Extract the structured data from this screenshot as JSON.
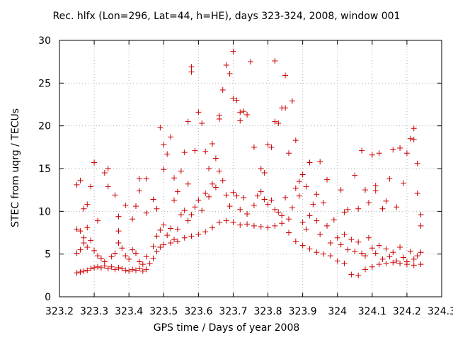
{
  "chart_data": {
    "type": "scatter",
    "title": "Rec. hlfx (Lon=296, Lat=44, h=HE), days 323-324, 2008, window 001",
    "xlabel": "GPS time / Days of year 2008",
    "ylabel": "STEC from uqrg / TECUs",
    "xlim": [
      323.2,
      324.3
    ],
    "ylim": [
      0,
      30
    ],
    "xticks": [
      "323.2",
      "323.3",
      "323.4",
      "323.5",
      "323.6",
      "323.7",
      "323.8",
      "323.9",
      "324",
      "324.1",
      "324.2",
      "324.3"
    ],
    "yticks": [
      "0",
      "5",
      "10",
      "15",
      "20",
      "25",
      "30"
    ],
    "grid": true,
    "marker": "+",
    "marker_color": "#cc0000",
    "points": [
      [
        323.25,
        2.8
      ],
      [
        323.26,
        2.9
      ],
      [
        323.27,
        3.0
      ],
      [
        323.28,
        3.1
      ],
      [
        323.29,
        3.3
      ],
      [
        323.3,
        3.4
      ],
      [
        323.31,
        3.5
      ],
      [
        323.32,
        3.4
      ],
      [
        323.33,
        3.6
      ],
      [
        323.34,
        3.3
      ],
      [
        323.35,
        3.5
      ],
      [
        323.36,
        3.2
      ],
      [
        323.37,
        3.4
      ],
      [
        323.38,
        3.3
      ],
      [
        323.39,
        3.1
      ],
      [
        323.4,
        3.0
      ],
      [
        323.41,
        3.2
      ],
      [
        323.42,
        3.1
      ],
      [
        323.43,
        3.3
      ],
      [
        323.44,
        3.0
      ],
      [
        323.45,
        3.2
      ],
      [
        323.46,
        3.9
      ],
      [
        323.47,
        4.5
      ],
      [
        323.48,
        5.3
      ],
      [
        323.49,
        5.8
      ],
      [
        323.5,
        6.1
      ],
      [
        323.52,
        6.3
      ],
      [
        323.54,
        6.5
      ],
      [
        323.56,
        6.9
      ],
      [
        323.58,
        7.1
      ],
      [
        323.6,
        7.3
      ],
      [
        323.62,
        7.6
      ],
      [
        323.64,
        8.1
      ],
      [
        323.66,
        8.7
      ],
      [
        323.68,
        8.9
      ],
      [
        323.7,
        8.7
      ],
      [
        323.72,
        8.4
      ],
      [
        323.74,
        8.5
      ],
      [
        323.76,
        8.3
      ],
      [
        323.78,
        8.2
      ],
      [
        323.8,
        8.1
      ],
      [
        323.82,
        8.3
      ],
      [
        323.84,
        8.6
      ],
      [
        323.86,
        7.5
      ],
      [
        323.88,
        6.5
      ],
      [
        323.9,
        6.0
      ],
      [
        323.92,
        5.6
      ],
      [
        323.94,
        5.2
      ],
      [
        323.96,
        5.0
      ],
      [
        323.98,
        4.8
      ],
      [
        324.0,
        4.2
      ],
      [
        324.02,
        3.9
      ],
      [
        324.04,
        2.6
      ],
      [
        324.06,
        2.5
      ],
      [
        324.08,
        3.2
      ],
      [
        324.1,
        3.5
      ],
      [
        324.12,
        3.8
      ],
      [
        324.14,
        3.9
      ],
      [
        324.16,
        4.0
      ],
      [
        324.18,
        3.9
      ],
      [
        324.2,
        3.8
      ],
      [
        324.22,
        3.7
      ],
      [
        324.24,
        3.8
      ],
      [
        323.25,
        13.1
      ],
      [
        323.26,
        13.6
      ],
      [
        323.25,
        7.9
      ],
      [
        323.26,
        7.7
      ],
      [
        323.27,
        10.3
      ],
      [
        323.28,
        10.8
      ],
      [
        323.27,
        6.9
      ],
      [
        323.28,
        8.1
      ],
      [
        323.29,
        12.9
      ],
      [
        323.3,
        15.7
      ],
      [
        323.31,
        8.9
      ],
      [
        323.33,
        14.5
      ],
      [
        323.34,
        15.0
      ],
      [
        323.34,
        12.9
      ],
      [
        323.36,
        11.9
      ],
      [
        323.37,
        9.4
      ],
      [
        323.37,
        7.7
      ],
      [
        323.39,
        10.7
      ],
      [
        323.41,
        9.1
      ],
      [
        323.42,
        10.6
      ],
      [
        323.43,
        12.4
      ],
      [
        323.43,
        13.8
      ],
      [
        323.45,
        13.8
      ],
      [
        323.45,
        9.8
      ],
      [
        323.47,
        11.4
      ],
      [
        323.48,
        10.3
      ],
      [
        323.49,
        19.8
      ],
      [
        323.5,
        17.8
      ],
      [
        323.5,
        14.9
      ],
      [
        323.51,
        16.7
      ],
      [
        323.52,
        18.7
      ],
      [
        323.53,
        13.9
      ],
      [
        323.53,
        11.3
      ],
      [
        323.54,
        12.3
      ],
      [
        323.55,
        14.7
      ],
      [
        323.56,
        16.9
      ],
      [
        323.57,
        13.2
      ],
      [
        323.57,
        20.5
      ],
      [
        323.58,
        26.9
      ],
      [
        323.58,
        26.3
      ],
      [
        323.59,
        17.1
      ],
      [
        323.6,
        21.6
      ],
      [
        323.61,
        20.3
      ],
      [
        323.62,
        17.0
      ],
      [
        323.63,
        15.0
      ],
      [
        323.64,
        17.9
      ],
      [
        323.65,
        16.2
      ],
      [
        323.66,
        21.2
      ],
      [
        323.66,
        20.8
      ],
      [
        323.67,
        24.2
      ],
      [
        323.68,
        27.1
      ],
      [
        323.69,
        26.1
      ],
      [
        323.7,
        28.7
      ],
      [
        323.7,
        23.2
      ],
      [
        323.71,
        23.0
      ],
      [
        323.72,
        20.6
      ],
      [
        323.72,
        21.6
      ],
      [
        323.73,
        21.7
      ],
      [
        323.74,
        21.3
      ],
      [
        323.75,
        27.5
      ],
      [
        323.76,
        17.5
      ],
      [
        323.78,
        15.0
      ],
      [
        323.79,
        14.5
      ],
      [
        323.8,
        17.8
      ],
      [
        323.81,
        17.5
      ],
      [
        323.82,
        27.6
      ],
      [
        323.82,
        20.5
      ],
      [
        323.83,
        20.3
      ],
      [
        323.84,
        22.1
      ],
      [
        323.85,
        22.1
      ],
      [
        323.85,
        25.9
      ],
      [
        323.86,
        16.8
      ],
      [
        323.87,
        22.9
      ],
      [
        323.88,
        18.3
      ],
      [
        323.89,
        13.5
      ],
      [
        323.9,
        14.3
      ],
      [
        323.91,
        12.9
      ],
      [
        323.92,
        15.7
      ],
      [
        323.94,
        12.0
      ],
      [
        323.95,
        15.8
      ],
      [
        323.97,
        13.7
      ],
      [
        323.99,
        9.0
      ],
      [
        324.01,
        12.5
      ],
      [
        324.02,
        9.9
      ],
      [
        324.03,
        10.2
      ],
      [
        324.05,
        14.2
      ],
      [
        324.06,
        10.3
      ],
      [
        324.07,
        17.1
      ],
      [
        324.08,
        12.5
      ],
      [
        324.09,
        11.0
      ],
      [
        324.1,
        16.6
      ],
      [
        324.11,
        13.0
      ],
      [
        324.11,
        12.4
      ],
      [
        324.12,
        16.8
      ],
      [
        324.13,
        10.3
      ],
      [
        324.14,
        11.2
      ],
      [
        324.15,
        13.8
      ],
      [
        324.16,
        17.2
      ],
      [
        324.17,
        10.5
      ],
      [
        324.18,
        17.4
      ],
      [
        324.19,
        13.3
      ],
      [
        324.2,
        16.8
      ],
      [
        324.21,
        18.5
      ],
      [
        324.22,
        19.7
      ],
      [
        324.22,
        18.4
      ],
      [
        324.23,
        12.1
      ],
      [
        324.23,
        15.6
      ],
      [
        324.24,
        9.6
      ],
      [
        324.24,
        8.3
      ],
      [
        323.25,
        5.1
      ],
      [
        323.26,
        5.5
      ],
      [
        323.27,
        6.3
      ],
      [
        323.28,
        5.8
      ],
      [
        323.29,
        6.6
      ],
      [
        323.3,
        5.4
      ],
      [
        323.31,
        4.8
      ],
      [
        323.32,
        4.5
      ],
      [
        323.33,
        4.1
      ],
      [
        323.35,
        4.7
      ],
      [
        323.36,
        5.1
      ],
      [
        323.37,
        6.3
      ],
      [
        323.38,
        5.7
      ],
      [
        323.39,
        4.8
      ],
      [
        323.4,
        4.4
      ],
      [
        323.41,
        5.5
      ],
      [
        323.42,
        5.1
      ],
      [
        323.43,
        4.1
      ],
      [
        323.44,
        3.8
      ],
      [
        323.45,
        4.7
      ],
      [
        323.47,
        5.9
      ],
      [
        323.48,
        7.1
      ],
      [
        323.49,
        7.8
      ],
      [
        323.5,
        8.4
      ],
      [
        323.51,
        7.2
      ],
      [
        323.52,
        8.0
      ],
      [
        323.53,
        6.7
      ],
      [
        323.54,
        7.9
      ],
      [
        323.55,
        9.6
      ],
      [
        323.56,
        10.1
      ],
      [
        323.57,
        8.9
      ],
      [
        323.58,
        9.6
      ],
      [
        323.59,
        10.5
      ],
      [
        323.6,
        11.3
      ],
      [
        323.61,
        10.1
      ],
      [
        323.62,
        12.1
      ],
      [
        323.63,
        11.7
      ],
      [
        323.64,
        13.2
      ],
      [
        323.65,
        12.8
      ],
      [
        323.66,
        14.7
      ],
      [
        323.67,
        13.6
      ],
      [
        323.68,
        11.9
      ],
      [
        323.69,
        10.6
      ],
      [
        323.7,
        12.2
      ],
      [
        323.71,
        11.8
      ],
      [
        323.72,
        10.2
      ],
      [
        323.73,
        11.6
      ],
      [
        323.74,
        9.7
      ],
      [
        323.76,
        10.7
      ],
      [
        323.77,
        11.8
      ],
      [
        323.78,
        12.3
      ],
      [
        323.79,
        11.4
      ],
      [
        323.8,
        10.8
      ],
      [
        323.81,
        11.3
      ],
      [
        323.82,
        10.2
      ],
      [
        323.83,
        9.9
      ],
      [
        323.84,
        9.5
      ],
      [
        323.85,
        11.6
      ],
      [
        323.86,
        9.1
      ],
      [
        323.87,
        10.4
      ],
      [
        323.88,
        12.7
      ],
      [
        323.89,
        11.8
      ],
      [
        323.9,
        8.7
      ],
      [
        323.91,
        7.9
      ],
      [
        323.92,
        9.5
      ],
      [
        323.93,
        10.8
      ],
      [
        323.94,
        8.9
      ],
      [
        323.95,
        7.3
      ],
      [
        323.96,
        11.0
      ],
      [
        323.97,
        8.3
      ],
      [
        323.98,
        6.3
      ],
      [
        324.0,
        6.9
      ],
      [
        324.01,
        6.1
      ],
      [
        324.02,
        7.3
      ],
      [
        324.03,
        5.5
      ],
      [
        324.04,
        6.7
      ],
      [
        324.05,
        5.3
      ],
      [
        324.06,
        6.4
      ],
      [
        324.07,
        5.1
      ],
      [
        324.08,
        4.8
      ],
      [
        324.09,
        6.9
      ],
      [
        324.1,
        5.7
      ],
      [
        324.11,
        5.1
      ],
      [
        324.12,
        6.0
      ],
      [
        324.13,
        4.4
      ],
      [
        324.14,
        5.6
      ],
      [
        324.15,
        4.7
      ],
      [
        324.16,
        5.2
      ],
      [
        324.17,
        4.2
      ],
      [
        324.18,
        5.8
      ],
      [
        324.19,
        4.6
      ],
      [
        324.2,
        4.1
      ],
      [
        324.21,
        5.3
      ],
      [
        324.22,
        4.4
      ],
      [
        324.23,
        4.8
      ],
      [
        324.24,
        5.2
      ]
    ]
  }
}
